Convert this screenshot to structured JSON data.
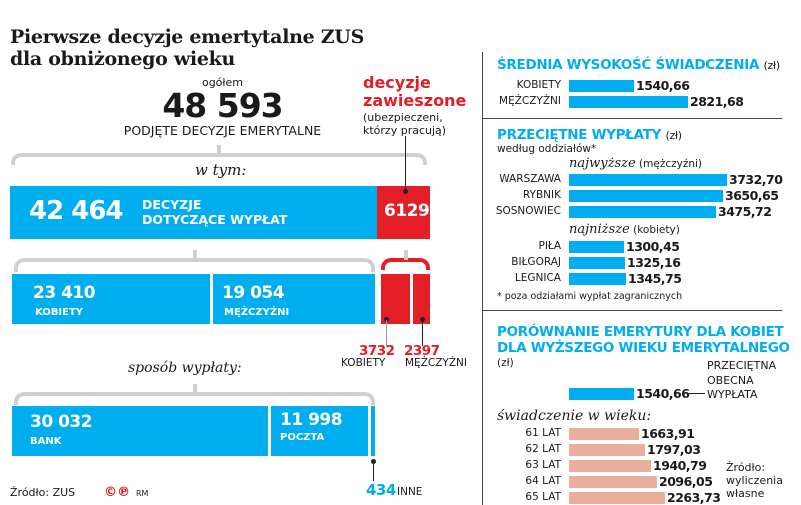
{
  "title": [
    "Pierwsze decyzje emertytalne ZUS",
    "dla obniżonego wieku"
  ],
  "total": {
    "label_top": "ogółem",
    "value": "48 593",
    "label_bottom": "PODJĘTE DECYZJE EMERYTALNE"
  },
  "suspended": {
    "title1": "decyzje",
    "title2": "zawieszone",
    "note1": "(ubezpieczeni,",
    "note2": "którzy pracują)"
  },
  "w_tym": "w tym:",
  "payout": {
    "value": "42 464",
    "label1": "DECYZJE",
    "label2": "DOTYCZĄCE WYPŁAT",
    "suspended_value": "6129"
  },
  "gender": {
    "women_value": "23 410",
    "women_label": "KOBIETY",
    "men_value": "19 054",
    "men_label": "MĘŻCZYŹNI",
    "susp_women_value": "3732",
    "susp_women_label": "KOBIETY",
    "susp_men_value": "2397",
    "susp_men_label": "MĘŻCZYŹNI"
  },
  "method": {
    "title": "sposób wypłaty:",
    "bank_value": "30 032",
    "bank_label": "BANK",
    "post_value": "11 998",
    "post_label": "POCZTA",
    "other_value": "434",
    "other_label": "INNE"
  },
  "source": "Źródło: ZUS",
  "logo": "©℗ RM",
  "colors": {
    "blue": "#00aeef",
    "red": "#e41e26",
    "pink": "#e8b09c"
  },
  "chart_data": [
    {
      "type": "bar",
      "title": "ŚREDNIA WYSOKOŚĆ ŚWIADCZENIA",
      "unit": "(zł)",
      "categories": [
        "KOBIETY",
        "MĘŻCZYŹNI"
      ],
      "values": [
        1540.66,
        2821.68
      ],
      "labels": [
        "1540,66",
        "2821,68"
      ]
    },
    {
      "type": "bar",
      "title": "PRZECIĘTNE WYPŁATY",
      "unit": "(zł)",
      "subtitle": "według oddziałów*",
      "groups": [
        {
          "title_it": "najwyższe",
          "title_note": "(mężczyźni)",
          "categories": [
            "WARSZAWA",
            "RYBNIK",
            "SOSNOWIEC"
          ],
          "values": [
            3732.7,
            3650.65,
            3475.72
          ],
          "labels": [
            "3732,70",
            "3650,65",
            "3475,72"
          ]
        },
        {
          "title_it": "najniższe",
          "title_note": "(kobiety)",
          "categories": [
            "PIŁA",
            "BIŁGORAJ",
            "LEGNICA"
          ],
          "values": [
            1300.45,
            1325.16,
            1345.75
          ],
          "labels": [
            "1300,45",
            "1325,16",
            "1345,75"
          ]
        }
      ],
      "footnote": "* poza odziałami wypłat zagranicznych"
    },
    {
      "type": "bar",
      "title": [
        "PORÓWNANIE EMERYTURY DLA KOBIET",
        "DLA WYŻSZEGO WIEKU EMERYTALNEGO"
      ],
      "unit": "(zł)",
      "current": {
        "value": 1540.66,
        "label": "1540,66",
        "note": [
          "PRZECIĘTNA",
          "OBECNA",
          "WYPŁATA"
        ]
      },
      "subtitle": "świadczenie w wieku:",
      "categories": [
        "61 LAT",
        "62 LAT",
        "63 LAT",
        "64 LAT",
        "65 LAT"
      ],
      "values": [
        1663.91,
        1797.03,
        1940.79,
        2096.05,
        2263.73
      ],
      "labels": [
        "1663,91",
        "1797,03",
        "1940,79",
        "2096,05",
        "2263,73"
      ],
      "source": [
        "Źródło:",
        "wyliczenia",
        "własne"
      ]
    }
  ]
}
